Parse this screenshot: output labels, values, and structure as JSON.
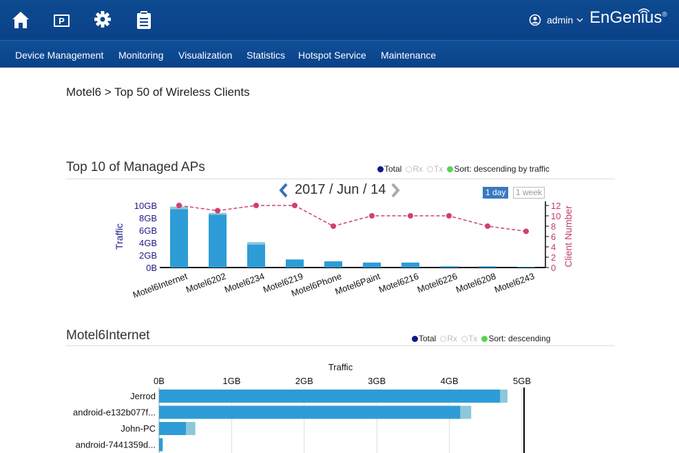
{
  "header": {
    "icons": [
      "home-icon",
      "portal-icon",
      "gear-icon",
      "clipboard-icon"
    ],
    "user": "admin",
    "brand": "EnGenius",
    "brand_mark": "®"
  },
  "nav": {
    "items": [
      "Device Management",
      "Monitoring",
      "Visualization",
      "Statistics",
      "Hotspot Service",
      "Maintenance"
    ]
  },
  "breadcrumb": "Motel6 > Top 50 of Wireless Clients",
  "top10": {
    "title": "Top 10 of Managed APs",
    "legend": {
      "total": "Total",
      "rx": "Rx",
      "tx": "Tx",
      "sort": "Sort: descending by traffic"
    },
    "date": "2017 / Jun / 14",
    "range_day": "1 day",
    "range_week": "1 week",
    "colors": {
      "bar": "#2e9cd6",
      "bar_light": "#8ec7da",
      "line": "#d0406f",
      "axis_left": "#1e1a86",
      "axis_right": "#c23c6a"
    }
  },
  "detail": {
    "title": "Motel6Internet",
    "legend": {
      "total": "Total",
      "rx": "Rx",
      "tx": "Tx",
      "sort": "Sort: descending"
    }
  },
  "chart_data": [
    {
      "type": "bar",
      "title": "Top 10 of Managed APs",
      "categories": [
        "Motel6Internet",
        "Motel6202",
        "Motel6234",
        "Motel6219",
        "Motel6Phone",
        "Motel6Paint",
        "Motel6216",
        "Motel6226",
        "Motel6208",
        "Motel6243"
      ],
      "series": [
        {
          "name": "Total",
          "values": [
            9.4,
            8.5,
            3.7,
            1.3,
            1.0,
            0.8,
            0.8,
            0.2,
            0.2,
            0.1
          ]
        },
        {
          "name": "Rx",
          "values": [
            0.4,
            0.3,
            0.4,
            0,
            0,
            0,
            0,
            0,
            0,
            0
          ]
        },
        {
          "name": "Client Number",
          "axis": "right",
          "values": [
            12,
            11,
            12,
            12,
            8,
            10,
            10,
            10,
            8,
            7
          ]
        }
      ],
      "ylabel": "Traffic",
      "ylabel_right": "Client Number",
      "yticks": [
        "0B",
        "2GB",
        "4GB",
        "6GB",
        "8GB",
        "10GB"
      ],
      "yticks_right": [
        "0",
        "2",
        "4",
        "6",
        "8",
        "10",
        "12"
      ],
      "ylim": [
        0,
        10
      ],
      "ylim_right": [
        0,
        12
      ]
    },
    {
      "type": "bar",
      "orientation": "horizontal",
      "title": "Motel6Internet",
      "xlabel": "Traffic",
      "xticks": [
        "0B",
        "1GB",
        "2GB",
        "3GB",
        "4GB",
        "5GB"
      ],
      "xlim": [
        0,
        5
      ],
      "categories": [
        "Jerrod",
        "android-e132b077f...",
        "John-PC",
        "android-7441359d..."
      ],
      "series": [
        {
          "name": "Total",
          "values": [
            4.7,
            4.15,
            0.37,
            0.05
          ]
        },
        {
          "name": "Rx",
          "values": [
            0.1,
            0.15,
            0.13,
            0
          ]
        }
      ]
    }
  ]
}
